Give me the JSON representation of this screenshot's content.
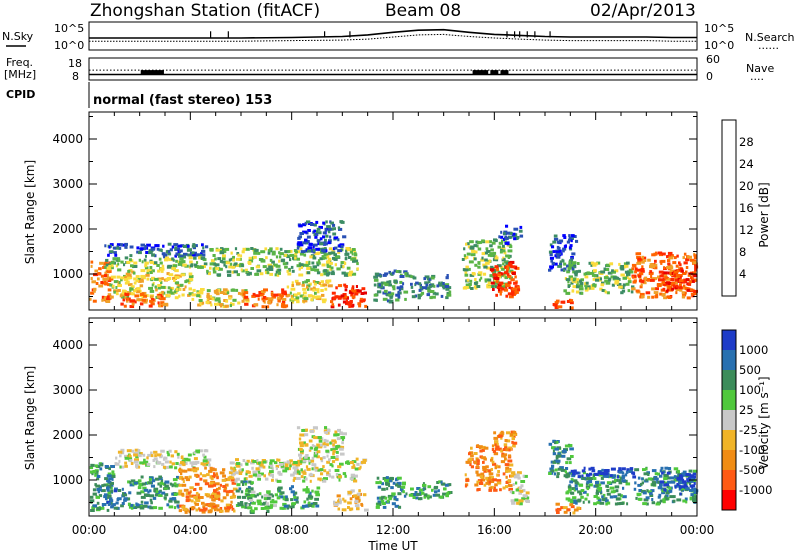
{
  "header": {
    "station": "Zhongshan Station (fitACF)",
    "beam": "Beam 08",
    "date": "02/Apr/2013"
  },
  "side_labels": {
    "nsky": "N.Sky",
    "freq": "Freq.",
    "mhz": "[MHz]",
    "cpid": "CPID",
    "nsearch": "N.Search",
    "nave": "Nave",
    "dots": "......",
    "dots_short": "...."
  },
  "mode_label": "normal (fast stereo) 153",
  "xaxis_title": "Time UT",
  "colors": {
    "power": [
      "#0000ff",
      "#2850b4",
      "#3c8c64",
      "#5ab446",
      "#fadc3c",
      "#f0a028",
      "#ff6400",
      "#ff2800",
      "#e60000"
    ],
    "velocity": [
      "#1e3cc8",
      "#2870b0",
      "#3c8c5a",
      "#50c83c",
      "#c8c8c8",
      "#f0b428",
      "#f08c14",
      "#ff5a14",
      "#ff0000"
    ]
  },
  "chart_data": [
    {
      "type": "line",
      "name": "nsky-nsearch",
      "ylabel": "N.Sky",
      "yticks_left": [
        "10^5",
        "10^0"
      ],
      "yticks_right": [
        "10^5",
        "10^0"
      ],
      "xlim": [
        0,
        24
      ],
      "nsky_x": [
        0,
        2,
        4,
        6,
        8,
        10,
        11,
        12,
        13,
        14,
        15,
        16,
        17,
        18,
        19,
        20,
        21,
        22,
        23,
        24
      ],
      "nsky_y": [
        2.3,
        2.3,
        2.3,
        2.3,
        2.4,
        2.6,
        2.9,
        3.4,
        3.8,
        3.9,
        3.4,
        3.0,
        2.8,
        2.6,
        2.5,
        2.5,
        2.5,
        2.5,
        2.4,
        2.4
      ],
      "nsearch_y": [
        1.7,
        1.7,
        1.7,
        1.7,
        1.8,
        1.9,
        2.1,
        2.5,
        2.9,
        3.0,
        2.6,
        2.3,
        2.1,
        1.9,
        1.8,
        1.8,
        1.8,
        1.8,
        1.7,
        1.7
      ]
    },
    {
      "type": "line",
      "name": "freq-nave",
      "ylabel": "Freq. [MHz]",
      "yticks_left": [
        "18",
        "8"
      ],
      "yticks_right": [
        "60",
        "0"
      ],
      "xlim": [
        0,
        24
      ],
      "freq_mhz": 10.5,
      "nave": 27
    },
    {
      "type": "heatmap",
      "name": "power",
      "ylabel": "Slant Range [km]",
      "yticks": [
        "1000",
        "2000",
        "3000",
        "4000"
      ],
      "ylim": [
        200,
        4600
      ],
      "xlim": [
        0,
        24
      ],
      "colorbar_label": "Power [dB]",
      "colorbar_ticks": [
        "4",
        "8",
        "12",
        "16",
        "20",
        "24",
        "28"
      ]
    },
    {
      "type": "heatmap",
      "name": "velocity",
      "ylabel": "Slant Range [km]",
      "yticks": [
        "1000",
        "2000",
        "3000",
        "4000"
      ],
      "ylim": [
        200,
        4600
      ],
      "xlim": [
        0,
        24
      ],
      "colorbar_label": "Velocity [m s⁻¹]",
      "colorbar_ticks": [
        "1000",
        "500",
        "100",
        "25",
        "-25",
        "-100",
        "-500",
        "-1000"
      ],
      "xticks": [
        "00:00",
        "04:00",
        "08:00",
        "12:00",
        "16:00",
        "20:00",
        "00:00"
      ],
      "regions": [
        {
          "t0": 0.0,
          "t1": 0.9,
          "r0": 300,
          "r1": 1400,
          "c": 2
        },
        {
          "t0": 0.6,
          "t1": 1.4,
          "r0": 400,
          "r1": 900,
          "c": 1
        },
        {
          "t0": 1.5,
          "t1": 3.5,
          "r0": 400,
          "r1": 1100,
          "c": 2
        },
        {
          "t0": 1.0,
          "t1": 4.8,
          "r0": 1300,
          "r1": 1700,
          "c": 4
        },
        {
          "t0": 3.5,
          "t1": 5.7,
          "r0": 300,
          "r1": 1300,
          "c": 6
        },
        {
          "t0": 5.7,
          "t1": 6.4,
          "r0": 400,
          "r1": 1000,
          "c": 2
        },
        {
          "t0": 6.2,
          "t1": 7.4,
          "r0": 300,
          "r1": 800,
          "c": 3
        },
        {
          "t0": 5.5,
          "t1": 10.8,
          "r0": 1000,
          "r1": 1500,
          "c": 4
        },
        {
          "t0": 7.4,
          "t1": 9.0,
          "r0": 400,
          "r1": 900,
          "c": 2
        },
        {
          "t0": 8.2,
          "t1": 10.0,
          "r0": 1500,
          "r1": 2200,
          "c": 4
        },
        {
          "t0": 9.6,
          "t1": 10.9,
          "r0": 350,
          "r1": 800,
          "c": 5
        },
        {
          "t0": 11.3,
          "t1": 12.5,
          "r0": 400,
          "r1": 1100,
          "c": 2
        },
        {
          "t0": 12.6,
          "t1": 14.2,
          "r0": 600,
          "r1": 1000,
          "c": 2
        },
        {
          "t0": 14.8,
          "t1": 16.6,
          "r0": 800,
          "r1": 1800,
          "c": 6
        },
        {
          "t0": 15.9,
          "t1": 16.9,
          "r0": 1700,
          "r1": 2100,
          "c": 6
        },
        {
          "t0": 16.6,
          "t1": 17.3,
          "r0": 500,
          "r1": 1200,
          "c": 4
        },
        {
          "t0": 18.1,
          "t1": 19.0,
          "r0": 1100,
          "r1": 1900,
          "c": 2
        },
        {
          "t0": 18.8,
          "t1": 21.2,
          "r0": 500,
          "r1": 1200,
          "c": 2
        },
        {
          "t0": 19.0,
          "t1": 21.5,
          "r0": 1100,
          "r1": 1300,
          "c": 0
        },
        {
          "t0": 21.5,
          "t1": 23.9,
          "r0": 500,
          "r1": 1300,
          "c": 2
        },
        {
          "t0": 22.5,
          "t1": 23.9,
          "r0": 700,
          "r1": 1200,
          "c": 0
        },
        {
          "t0": 18.4,
          "t1": 19.3,
          "r0": 300,
          "r1": 500,
          "c": 6
        }
      ]
    }
  ],
  "power_regions": [
    {
      "t0": 0.0,
      "t1": 0.8,
      "r0": 400,
      "r1": 1300,
      "c": 6
    },
    {
      "t0": 0.6,
      "t1": 4.6,
      "r0": 1400,
      "r1": 1700,
      "c": 1
    },
    {
      "t0": 0.6,
      "t1": 4.6,
      "r0": 1100,
      "r1": 1400,
      "c": 3
    },
    {
      "t0": 0.8,
      "t1": 4.0,
      "r0": 500,
      "r1": 1100,
      "c": 4
    },
    {
      "t0": 1.2,
      "t1": 3.0,
      "r0": 300,
      "r1": 600,
      "c": 6
    },
    {
      "t0": 4.0,
      "t1": 6.2,
      "r0": 300,
      "r1": 700,
      "c": 4
    },
    {
      "t0": 4.6,
      "t1": 10.6,
      "r0": 1000,
      "r1": 1600,
      "c": 3
    },
    {
      "t0": 6.0,
      "t1": 7.8,
      "r0": 300,
      "r1": 700,
      "c": 6
    },
    {
      "t0": 7.8,
      "t1": 9.5,
      "r0": 400,
      "r1": 900,
      "c": 4
    },
    {
      "t0": 8.2,
      "t1": 10.0,
      "r0": 1500,
      "r1": 2200,
      "c": 1
    },
    {
      "t0": 9.5,
      "t1": 10.9,
      "r0": 300,
      "r1": 800,
      "c": 7
    },
    {
      "t0": 11.2,
      "t1": 12.5,
      "r0": 400,
      "r1": 1100,
      "c": 2
    },
    {
      "t0": 12.6,
      "t1": 14.2,
      "r0": 500,
      "r1": 1000,
      "c": 2
    },
    {
      "t0": 14.7,
      "t1": 16.6,
      "r0": 700,
      "r1": 1800,
      "c": 3
    },
    {
      "t0": 15.8,
      "t1": 16.9,
      "r0": 500,
      "r1": 1300,
      "c": 7
    },
    {
      "t0": 16.1,
      "t1": 17.0,
      "r0": 1700,
      "r1": 2100,
      "c": 1
    },
    {
      "t0": 18.1,
      "t1": 19.2,
      "r0": 1100,
      "r1": 1900,
      "c": 1
    },
    {
      "t0": 18.7,
      "t1": 21.4,
      "r0": 600,
      "r1": 1300,
      "c": 3
    },
    {
      "t0": 21.4,
      "t1": 23.9,
      "r0": 500,
      "r1": 1500,
      "c": 6
    },
    {
      "t0": 22.5,
      "t1": 23.9,
      "r0": 600,
      "r1": 1100,
      "c": 7
    },
    {
      "t0": 18.2,
      "t1": 19.1,
      "r0": 250,
      "r1": 450,
      "c": 7
    }
  ]
}
